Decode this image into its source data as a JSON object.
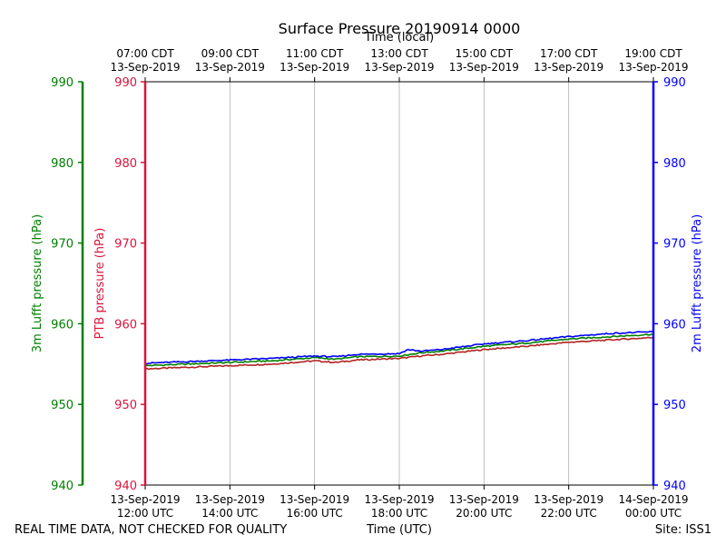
{
  "chart_data": {
    "type": "line",
    "title": "Surface Pressure 20190914 0000",
    "xlabel": "Time (UTC)",
    "xlabel_top": "Time (local)",
    "x_range_hours_utc": [
      12,
      24
    ],
    "x_ticks_bottom": [
      {
        "date": "13-Sep-2019",
        "time": "12:00 UTC"
      },
      {
        "date": "13-Sep-2019",
        "time": "14:00 UTC"
      },
      {
        "date": "13-Sep-2019",
        "time": "16:00 UTC"
      },
      {
        "date": "13-Sep-2019",
        "time": "18:00 UTC"
      },
      {
        "date": "13-Sep-2019",
        "time": "20:00 UTC"
      },
      {
        "date": "13-Sep-2019",
        "time": "22:00 UTC"
      },
      {
        "date": "14-Sep-2019",
        "time": "00:00 UTC"
      }
    ],
    "x_ticks_top": [
      {
        "time": "07:00 CDT",
        "date": "13-Sep-2019"
      },
      {
        "time": "09:00 CDT",
        "date": "13-Sep-2019"
      },
      {
        "time": "11:00 CDT",
        "date": "13-Sep-2019"
      },
      {
        "time": "13:00 CDT",
        "date": "13-Sep-2019"
      },
      {
        "time": "15:00 CDT",
        "date": "13-Sep-2019"
      },
      {
        "time": "17:00 CDT",
        "date": "13-Sep-2019"
      },
      {
        "time": "19:00 CDT",
        "date": "13-Sep-2019"
      }
    ],
    "y_axes": [
      {
        "label": "3m Lufft pressure (hPa)",
        "color": "#008000",
        "ylim": [
          940,
          990
        ],
        "ticks": [
          940,
          950,
          960,
          970,
          980,
          990
        ],
        "side": "far-left"
      },
      {
        "label": "PTB pressure (hPa)",
        "color": "#dc143c",
        "ylim": [
          940,
          990
        ],
        "ticks": [
          940,
          950,
          960,
          970,
          980,
          990
        ],
        "side": "left"
      },
      {
        "label": "2m Lufft pressure (hPa)",
        "color": "#0000ff",
        "ylim": [
          940,
          990
        ],
        "ticks": [
          940,
          950,
          960,
          970,
          980,
          990
        ],
        "side": "right"
      }
    ],
    "grid": "vertical",
    "series": [
      {
        "color": "#b22222",
        "x_hours_utc": [
          12,
          13,
          14,
          15,
          16,
          16.5,
          17,
          18,
          18.5,
          19,
          20,
          21,
          22,
          23,
          24
        ],
        "values": [
          954.4,
          954.6,
          954.8,
          955.0,
          955.4,
          955.2,
          955.5,
          955.7,
          956.0,
          956.2,
          956.8,
          957.2,
          957.7,
          958.0,
          958.3
        ]
      },
      {
        "color": "#008000",
        "x_hours_utc": [
          12,
          13,
          14,
          15,
          16,
          16.5,
          17,
          18,
          18.5,
          19,
          20,
          21,
          22,
          23,
          24
        ],
        "values": [
          954.8,
          955.0,
          955.2,
          955.4,
          955.8,
          955.6,
          955.9,
          956.0,
          956.4,
          956.6,
          957.2,
          957.6,
          958.1,
          958.4,
          958.7
        ]
      },
      {
        "color": "#0000ff",
        "x_hours_utc": [
          12,
          13,
          14,
          15,
          16,
          16.5,
          17,
          18,
          18.2,
          18.5,
          19,
          20,
          21,
          22,
          23,
          24
        ],
        "values": [
          955.1,
          955.3,
          955.5,
          955.7,
          956.0,
          955.9,
          956.2,
          956.3,
          956.8,
          956.6,
          956.8,
          957.5,
          957.9,
          958.4,
          958.8,
          959.0
        ]
      }
    ]
  },
  "footer": {
    "left": "REAL TIME DATA, NOT CHECKED FOR QUALITY",
    "right": "Site: ISS1"
  }
}
